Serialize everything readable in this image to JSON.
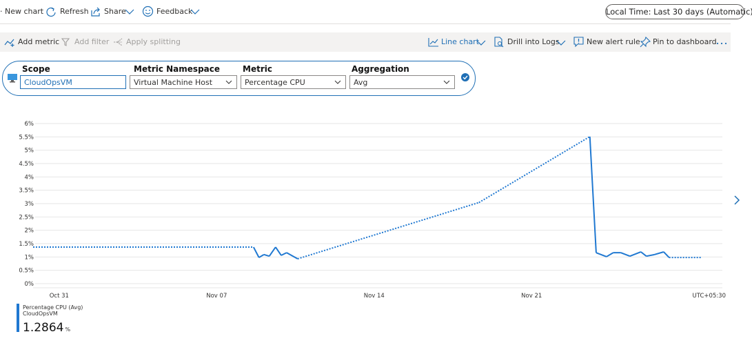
{
  "toolbar": {
    "new_chart": "New chart",
    "refresh": "Refresh",
    "share": "Share",
    "feedback": "Feedback",
    "time_range": "Local Time: Last 30 days (Automatic)"
  },
  "command_bar": {
    "add_metric": "Add metric",
    "add_filter": "Add filter",
    "apply_splitting": "Apply splitting",
    "line_chart": "Line chart",
    "drill_into_logs": "Drill into Logs",
    "new_alert_rule": "New alert rule",
    "pin_to_dashboard": "Pin to dashboard"
  },
  "metric_selector": {
    "fields": [
      {
        "label": "Scope",
        "value": "CloudOpsVM"
      },
      {
        "label": "Metric Namespace",
        "value": "Virtual Machine Host"
      },
      {
        "label": "Metric",
        "value": "Percentage CPU"
      },
      {
        "label": "Aggregation",
        "value": "Avg"
      }
    ]
  },
  "chart_data": {
    "type": "line",
    "x": [
      -1.16,
      8.64,
      8.88,
      9.1,
      9.34,
      9.62,
      9.87,
      10.11,
      10.6,
      18.66,
      23.59,
      23.87,
      24.33,
      24.63,
      24.97,
      25.37,
      25.86,
      26.1,
      26.47,
      26.87,
      27.11,
      28.55
    ],
    "series": [
      {
        "name": "Percentage CPU (Avg)",
        "resource": "CloudOpsVM",
        "color": "#1f78d1",
        "values": [
          1.37,
          1.37,
          0.98,
          1.09,
          1.03,
          1.37,
          1.06,
          1.16,
          0.93,
          3.04,
          5.51,
          1.16,
          1.01,
          1.16,
          1.16,
          1.03,
          1.19,
          1.03,
          1.09,
          1.19,
          0.98,
          0.98
        ]
      }
    ],
    "xlim": [
      -1.16,
      29.48
    ],
    "xticks": [
      {
        "value": 0,
        "label": "Oct 31"
      },
      {
        "value": 7,
        "label": "Nov 07"
      },
      {
        "value": 14,
        "label": "Nov 14"
      },
      {
        "value": 21,
        "label": "Nov 21"
      }
    ],
    "ylim": [
      0,
      6
    ],
    "yticks": [
      {
        "value": 0,
        "label": "0%"
      },
      {
        "value": 0.5,
        "label": "0.5%"
      },
      {
        "value": 1,
        "label": "1%"
      },
      {
        "value": 1.5,
        "label": "1.5%"
      },
      {
        "value": 2,
        "label": "2%"
      },
      {
        "value": 2.5,
        "label": "2.5%"
      },
      {
        "value": 3,
        "label": "3%"
      },
      {
        "value": 3.5,
        "label": "3.5%"
      },
      {
        "value": 4,
        "label": "4%"
      },
      {
        "value": 4.5,
        "label": "4.5%"
      },
      {
        "value": 5,
        "label": "5%"
      },
      {
        "value": 5.5,
        "label": "5.5%"
      },
      {
        "value": 6,
        "label": "6%"
      }
    ],
    "grid": true,
    "timezone": "UTC+05:30",
    "summary": {
      "value": 1.2864,
      "unit": "%"
    }
  }
}
